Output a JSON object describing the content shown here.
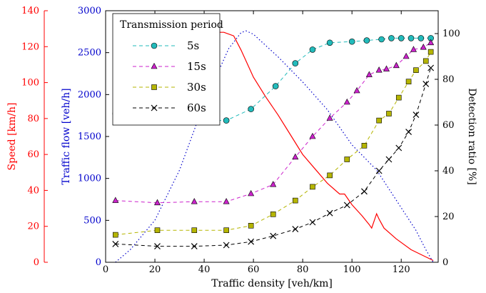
{
  "chart_data": {
    "type": "line",
    "x_axis": {
      "label": "Traffic density [veh/km]",
      "min": 0,
      "max": 135,
      "ticks": [
        0,
        20,
        40,
        60,
        80,
        100,
        120
      ]
    },
    "y_axes": {
      "speed": {
        "label": "Speed [km/h]",
        "min": 0,
        "max": 140,
        "ticks": [
          0,
          20,
          40,
          60,
          80,
          100,
          120,
          140
        ],
        "color": "#ff0000"
      },
      "flow": {
        "label": "Traffic flow [veh/h]",
        "min": 0,
        "max": 3000,
        "ticks": [
          0,
          500,
          1000,
          1500,
          2000,
          2500,
          3000
        ],
        "color": "#0000cc"
      },
      "detection": {
        "label": "Detection ratio [%]",
        "min": 0,
        "max": 110,
        "ticks": [
          0,
          20,
          40,
          60,
          80,
          100
        ],
        "color": "#000000"
      }
    },
    "legend": {
      "title": "Transmission period",
      "placement": "top-left"
    },
    "speed_curve": {
      "axis": "speed",
      "color": "#ff0000",
      "style": "solid",
      "x": [
        4,
        10,
        20,
        30,
        40,
        48,
        52,
        55,
        60,
        65,
        70,
        75,
        80,
        85,
        90,
        95,
        97,
        100,
        104,
        107,
        108,
        110,
        111,
        113,
        118,
        124,
        130,
        133
      ],
      "y": [
        128,
        128,
        128,
        128,
        128,
        128,
        126,
        118,
        103,
        92,
        82,
        71,
        60,
        52,
        44,
        38,
        38,
        32,
        26,
        21,
        19,
        27,
        24,
        19,
        13,
        7,
        3,
        1
      ]
    },
    "flow_curve": {
      "axis": "flow",
      "color": "#0000cc",
      "style": "dotted",
      "x": [
        4,
        10,
        20,
        30,
        40,
        50,
        55,
        57,
        60,
        70,
        80,
        90,
        100,
        110,
        120,
        126,
        130,
        133
      ],
      "y": [
        0,
        150,
        500,
        1100,
        1900,
        2550,
        2740,
        2760,
        2720,
        2450,
        2150,
        1820,
        1400,
        1100,
        650,
        380,
        150,
        0
      ]
    },
    "series": [
      {
        "name": "5s",
        "axis": "detection",
        "color": "#22bbbb",
        "marker": "circle",
        "x": [
          4,
          21,
          36,
          49,
          59,
          69,
          77,
          84,
          91,
          100,
          106,
          112,
          116,
          120,
          124,
          128,
          132
        ],
        "y": [
          65,
          62,
          62,
          62,
          67,
          77,
          87,
          93,
          96,
          96.5,
          97,
          97.5,
          98,
          98,
          98,
          98,
          98
        ]
      },
      {
        "name": "15s",
        "axis": "detection",
        "color": "#cc22cc",
        "marker": "triangle",
        "x": [
          4,
          21,
          36,
          49,
          59,
          68,
          77,
          84,
          91,
          98,
          102,
          107,
          111,
          114,
          118,
          122,
          125,
          129,
          132
        ],
        "y": [
          27,
          26,
          26.5,
          26.5,
          30,
          34,
          46,
          55,
          63,
          70,
          75,
          82,
          84,
          84.5,
          86,
          90,
          93,
          94,
          96
        ]
      },
      {
        "name": "30s",
        "axis": "detection",
        "color": "#b5b500",
        "marker": "square",
        "x": [
          4,
          21,
          36,
          49,
          59,
          68,
          77,
          84,
          91,
          98,
          105,
          111,
          115,
          119,
          123,
          126,
          130,
          132
        ],
        "y": [
          12,
          14,
          14,
          14,
          16,
          21,
          27,
          33,
          38,
          45,
          51,
          62,
          65,
          72,
          79,
          84,
          88,
          92
        ]
      },
      {
        "name": "60s",
        "axis": "detection",
        "color": "#000000",
        "marker": "x",
        "x": [
          4,
          21,
          36,
          49,
          59,
          68,
          77,
          84,
          91,
          98,
          105,
          111,
          115,
          119,
          123,
          126,
          130,
          132
        ],
        "y": [
          8,
          7,
          7,
          7.5,
          9,
          11.5,
          14.5,
          17.5,
          21.5,
          25,
          31,
          40,
          45,
          50,
          57,
          64.5,
          78,
          85
        ]
      }
    ]
  }
}
